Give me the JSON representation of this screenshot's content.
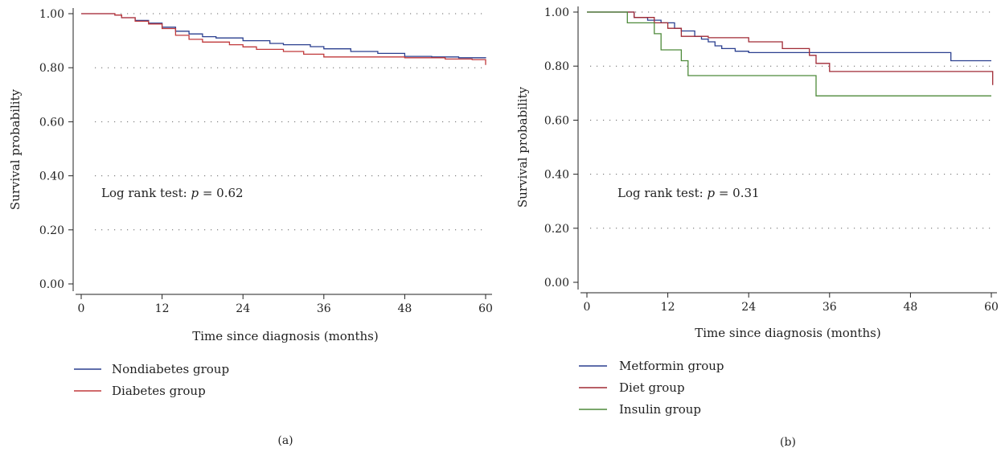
{
  "chart_data": [
    {
      "type": "line",
      "step": true,
      "panel_label": "(a)",
      "title": "",
      "xlabel": "Time since diagnosis (months)",
      "ylabel": "Survival probability",
      "xlim": [
        0,
        60
      ],
      "ylim": [
        0,
        1
      ],
      "xticks": [
        0,
        12,
        24,
        36,
        48,
        60
      ],
      "yticks": [
        "0.00",
        "0.20",
        "0.40",
        "0.60",
        "0.80",
        "1.00"
      ],
      "grid": "horizontal dotted",
      "legend_position": "below-left",
      "annotation": {
        "prefix": "Log rank test: ",
        "var": "p",
        "suffix": " = 0.62"
      },
      "series": [
        {
          "name": "Nondiabetes group",
          "color": "#2a3f8f",
          "points": [
            [
              0,
              1.0
            ],
            [
              5,
              0.995
            ],
            [
              6,
              0.985
            ],
            [
              8,
              0.975
            ],
            [
              10,
              0.965
            ],
            [
              12,
              0.95
            ],
            [
              14,
              0.935
            ],
            [
              16,
              0.925
            ],
            [
              18,
              0.915
            ],
            [
              20,
              0.91
            ],
            [
              24,
              0.9
            ],
            [
              28,
              0.89
            ],
            [
              30,
              0.885
            ],
            [
              34,
              0.878
            ],
            [
              36,
              0.87
            ],
            [
              40,
              0.86
            ],
            [
              44,
              0.853
            ],
            [
              48,
              0.842
            ],
            [
              52,
              0.84
            ],
            [
              56,
              0.837
            ],
            [
              60,
              0.835
            ]
          ]
        },
        {
          "name": "Diabetes group",
          "color": "#c0393b",
          "points": [
            [
              0,
              1.0
            ],
            [
              5,
              0.995
            ],
            [
              6,
              0.985
            ],
            [
              8,
              0.972
            ],
            [
              10,
              0.962
            ],
            [
              12,
              0.945
            ],
            [
              14,
              0.92
            ],
            [
              16,
              0.905
            ],
            [
              18,
              0.895
            ],
            [
              22,
              0.885
            ],
            [
              24,
              0.877
            ],
            [
              26,
              0.868
            ],
            [
              30,
              0.86
            ],
            [
              33,
              0.85
            ],
            [
              36,
              0.84
            ],
            [
              44,
              0.84
            ],
            [
              48,
              0.837
            ],
            [
              54,
              0.832
            ],
            [
              58,
              0.83
            ],
            [
              60,
              0.81
            ]
          ]
        }
      ]
    },
    {
      "type": "line",
      "step": true,
      "panel_label": "(b)",
      "title": "",
      "xlabel": "Time since diagnosis (months)",
      "ylabel": "Survival probability",
      "xlim": [
        0,
        60
      ],
      "ylim": [
        0,
        1
      ],
      "xticks": [
        0,
        12,
        24,
        36,
        48,
        60
      ],
      "yticks": [
        "0.00",
        "0.20",
        "0.40",
        "0.60",
        "0.80",
        "1.00"
      ],
      "grid": "horizontal dotted",
      "legend_position": "below-left",
      "annotation": {
        "prefix": "Log rank test: ",
        "var": "p",
        "suffix": " = 0.31"
      },
      "series": [
        {
          "name": "Metformin group",
          "color": "#2a3f8f",
          "points": [
            [
              0,
              1.0
            ],
            [
              7,
              0.98
            ],
            [
              9,
              0.97
            ],
            [
              11,
              0.96
            ],
            [
              13,
              0.94
            ],
            [
              14,
              0.93
            ],
            [
              16,
              0.91
            ],
            [
              17,
              0.9
            ],
            [
              18,
              0.89
            ],
            [
              19,
              0.875
            ],
            [
              20,
              0.865
            ],
            [
              22,
              0.855
            ],
            [
              24,
              0.85
            ],
            [
              36,
              0.85
            ],
            [
              44,
              0.85
            ],
            [
              53,
              0.85
            ],
            [
              54,
              0.82
            ],
            [
              60,
              0.82
            ]
          ]
        },
        {
          "name": "Diet group",
          "color": "#a02a35",
          "points": [
            [
              0,
              1.0
            ],
            [
              7,
              0.98
            ],
            [
              10,
              0.96
            ],
            [
              12,
              0.94
            ],
            [
              14,
              0.91
            ],
            [
              18,
              0.905
            ],
            [
              23,
              0.905
            ],
            [
              24,
              0.89
            ],
            [
              29,
              0.865
            ],
            [
              33,
              0.84
            ],
            [
              34,
              0.81
            ],
            [
              36,
              0.78
            ],
            [
              50,
              0.78
            ],
            [
              60,
              0.78
            ],
            [
              60.2,
              0.73
            ]
          ]
        },
        {
          "name": "Insulin group",
          "color": "#4e8a3a",
          "points": [
            [
              0,
              1.0
            ],
            [
              6,
              0.96
            ],
            [
              10,
              0.92
            ],
            [
              11,
              0.86
            ],
            [
              14,
              0.82
            ],
            [
              15,
              0.765
            ],
            [
              33,
              0.765
            ],
            [
              34,
              0.69
            ],
            [
              60,
              0.69
            ]
          ]
        }
      ]
    }
  ]
}
